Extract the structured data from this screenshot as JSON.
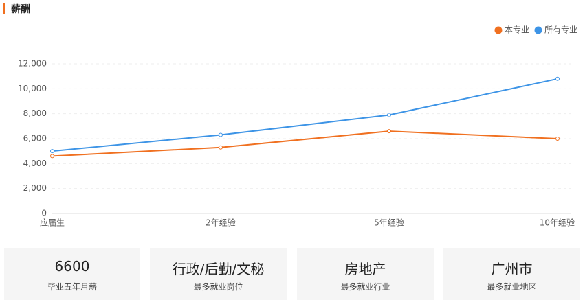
{
  "section_title": "薪酬",
  "chart_data": {
    "type": "line",
    "categories": [
      "应届生",
      "2年经验",
      "5年经验",
      "10年经验"
    ],
    "series": [
      {
        "name": "本专业",
        "color": "#f07020",
        "values": [
          4600,
          5300,
          6600,
          6000
        ]
      },
      {
        "name": "所有专业",
        "color": "#3d94e6",
        "values": [
          5000,
          6300,
          7900,
          10800
        ]
      }
    ],
    "ylim": [
      0,
      12000
    ],
    "yticks": [
      0,
      {
        "value": 2000,
        "label": "2,000"
      },
      {
        "value": 4000,
        "label": "4,000"
      },
      {
        "value": 6000,
        "label": "6,000"
      },
      {
        "value": 8000,
        "label": "8,000"
      },
      {
        "value": 10000,
        "label": "10,000"
      },
      {
        "value": 12000,
        "label": "12,000"
      }
    ],
    "grid": true,
    "legend": "top-right"
  },
  "cards": [
    {
      "value": 6600,
      "label": "毕业五年月薪"
    },
    {
      "value": "行政/后勤/文秘",
      "label": "最多就业岗位"
    },
    {
      "value": "房地产",
      "label": "最多就业行业"
    },
    {
      "value": "广州市",
      "label": "最多就业地区"
    }
  ]
}
